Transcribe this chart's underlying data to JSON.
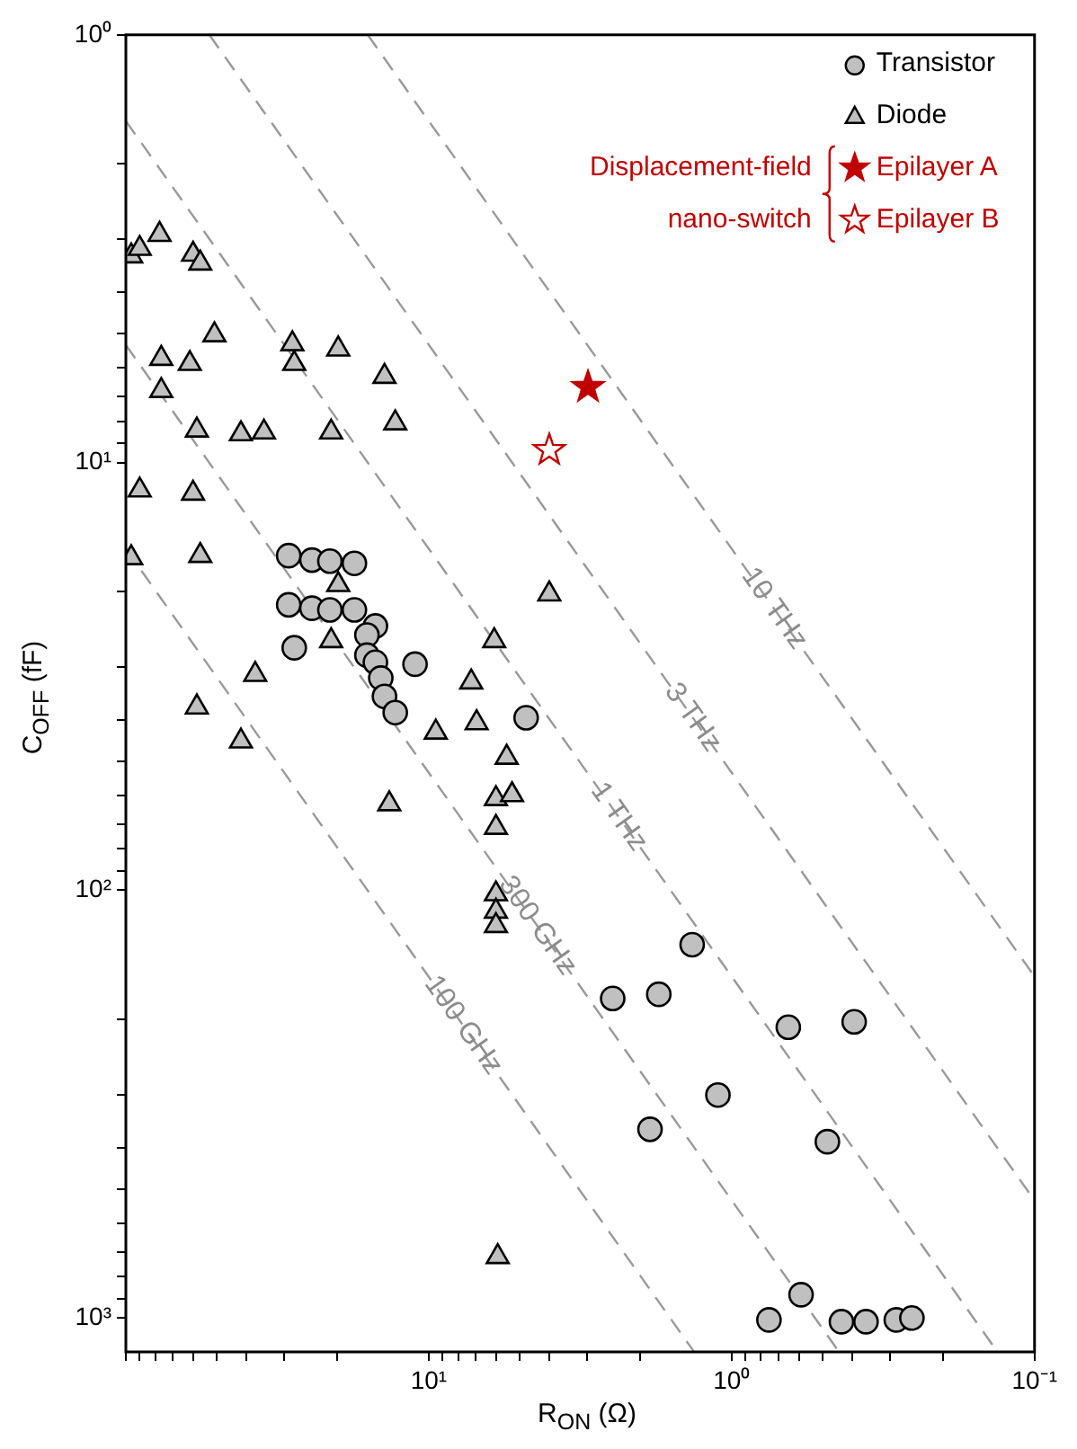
{
  "chart_data": {
    "type": "scatter",
    "xlabel": "R$_{ON}$ (Ω)",
    "ylabel": "C$_{OFF}$ (fF)",
    "log": "xy",
    "grid": false,
    "legend": "top right",
    "line_style": "dashed",
    "xlim": [
      100,
      0.1
    ],
    "ylim": [
      1200,
      1
    ],
    "xticks": [
      {
        "value": 100,
        "label": null
      },
      {
        "value": 90,
        "label": null
      },
      {
        "value": 80,
        "label": null
      },
      {
        "value": 70,
        "label": null
      },
      {
        "value": 60,
        "label": null
      },
      {
        "value": 50,
        "label": null
      },
      {
        "value": 40,
        "label": null
      },
      {
        "value": 30,
        "label": null
      },
      {
        "value": 20,
        "label": null
      },
      {
        "value": 10,
        "label": "10¹"
      },
      {
        "value": 9,
        "label": null
      },
      {
        "value": 8,
        "label": null
      },
      {
        "value": 7,
        "label": null
      },
      {
        "value": 6,
        "label": null
      },
      {
        "value": 5,
        "label": null
      },
      {
        "value": 4,
        "label": null
      },
      {
        "value": 3,
        "label": null
      },
      {
        "value": 2,
        "label": null
      },
      {
        "value": 1,
        "label": "10⁰"
      },
      {
        "value": 0.9,
        "label": null
      },
      {
        "value": 0.8,
        "label": null
      },
      {
        "value": 0.7,
        "label": null
      },
      {
        "value": 0.6,
        "label": null
      },
      {
        "value": 0.5,
        "label": null
      },
      {
        "value": 0.4,
        "label": null
      },
      {
        "value": 0.3,
        "label": null
      },
      {
        "value": 0.2,
        "label": null
      },
      {
        "value": 0.1,
        "label": "10⁻¹"
      }
    ],
    "yticks": [
      {
        "value": 1,
        "label": "10⁰"
      },
      {
        "value": 2,
        "label": null
      },
      {
        "value": 3,
        "label": null
      },
      {
        "value": 4,
        "label": null
      },
      {
        "value": 5,
        "label": null
      },
      {
        "value": 6,
        "label": null
      },
      {
        "value": 7,
        "label": null
      },
      {
        "value": 8,
        "label": null
      },
      {
        "value": 9,
        "label": null
      },
      {
        "value": 10,
        "label": "10¹"
      },
      {
        "value": 20,
        "label": null
      },
      {
        "value": 30,
        "label": null
      },
      {
        "value": 40,
        "label": null
      },
      {
        "value": 50,
        "label": null
      },
      {
        "value": 60,
        "label": null
      },
      {
        "value": 70,
        "label": null
      },
      {
        "value": 80,
        "label": null
      },
      {
        "value": 90,
        "label": null
      },
      {
        "value": 100,
        "label": "10²"
      },
      {
        "value": 200,
        "label": null
      },
      {
        "value": 300,
        "label": null
      },
      {
        "value": 400,
        "label": null
      },
      {
        "value": 500,
        "label": null
      },
      {
        "value": 600,
        "label": null
      },
      {
        "value": 700,
        "label": null
      },
      {
        "value": 800,
        "label": null
      },
      {
        "value": 900,
        "label": null
      },
      {
        "value": 1000,
        "label": "10³"
      }
    ],
    "series": [
      {
        "name": "Transistor",
        "marker": "circle",
        "color": "#c0c0c0",
        "x": [
          29.0,
          24.3,
          21.2,
          17.6,
          29.0,
          24.3,
          21.2,
          17.6,
          15.0,
          16.0,
          27.8,
          16.0,
          15.0,
          14.4,
          14.0,
          12.9,
          11.1,
          4.77,
          1.35,
          2.47,
          1.74,
          0.65,
          0.394,
          1.11,
          1.86,
          0.483,
          0.59,
          0.753,
          0.434,
          0.36,
          0.286,
          0.254
        ],
        "values": [
          16.5,
          16.9,
          17.0,
          17.2,
          21.5,
          21.9,
          22.1,
          22.1,
          24.1,
          25.3,
          27.1,
          28.2,
          29.3,
          31.9,
          35.2,
          38.4,
          29.6,
          39.5,
          134,
          179,
          175,
          209,
          203,
          301,
          362,
          387,
          882,
          1010,
          1020,
          1020,
          1010,
          1000
        ]
      },
      {
        "name": "Diode",
        "marker": "triangle",
        "color": "#c0c0c0",
        "x": [
          96,
          90,
          77.4,
          60,
          56.8,
          51,
          76.4,
          61.5,
          76.4,
          28.2,
          27.8,
          19.9,
          14.0,
          58.3,
          41.7,
          35.0,
          21.0,
          12.9,
          90,
          60,
          96,
          56.8,
          19.9,
          21.0,
          37.4,
          58.3,
          41.7,
          6.08,
          4.0,
          7.24,
          6.95,
          9.48,
          5.53,
          13.5,
          6.0,
          5.31,
          6.0,
          6.0,
          6.0,
          6.0,
          5.92
        ],
        "values": [
          3.29,
          3.16,
          2.93,
          3.26,
          3.42,
          5.03,
          5.71,
          5.87,
          6.79,
          5.28,
          5.87,
          5.43,
          6.29,
          8.4,
          8.57,
          8.49,
          8.49,
          8.08,
          11.6,
          11.8,
          16.7,
          16.5,
          19.3,
          26.1,
          31.3,
          37.3,
          44.8,
          26.1,
          20.3,
          32.6,
          40.6,
          42.7,
          48.9,
          62.8,
          61.1,
          59.8,
          71.3,
          102,
          112,
          121,
          719
        ]
      },
      {
        "name": "Epilayer A",
        "marker": "star",
        "color": "#c00000",
        "x": [
          2.98
        ],
        "values": [
          6.66
        ]
      },
      {
        "name": "Epilayer B",
        "marker": "star",
        "color": "#c00000",
        "x": [
          4.0
        ],
        "values": [
          9.35
        ]
      },
      {
        "name": "10 THz",
        "type": "line",
        "color": "#999999",
        "x": [
          15.9,
          0.1
        ],
        "values": [
          1,
          159
        ]
      },
      {
        "name": "3 THz",
        "type": "line",
        "color": "#999999",
        "x": [
          53,
          0.1
        ],
        "values": [
          1,
          531
        ]
      },
      {
        "name": "1 THz",
        "type": "line",
        "color": "#999999",
        "x": [
          100,
          0.1325
        ],
        "values": [
          1.59,
          1200
        ]
      },
      {
        "name": "300 GHz",
        "type": "line",
        "color": "#999999",
        "x": [
          100,
          0.442
        ],
        "values": [
          5.31,
          1200
        ]
      },
      {
        "name": "100 GHz",
        "type": "line",
        "color": "#999999",
        "x": [
          100,
          1.33
        ],
        "values": [
          15.9,
          1200
        ]
      }
    ],
    "annotations": [
      "Displacement-field nano-switch"
    ]
  }
}
